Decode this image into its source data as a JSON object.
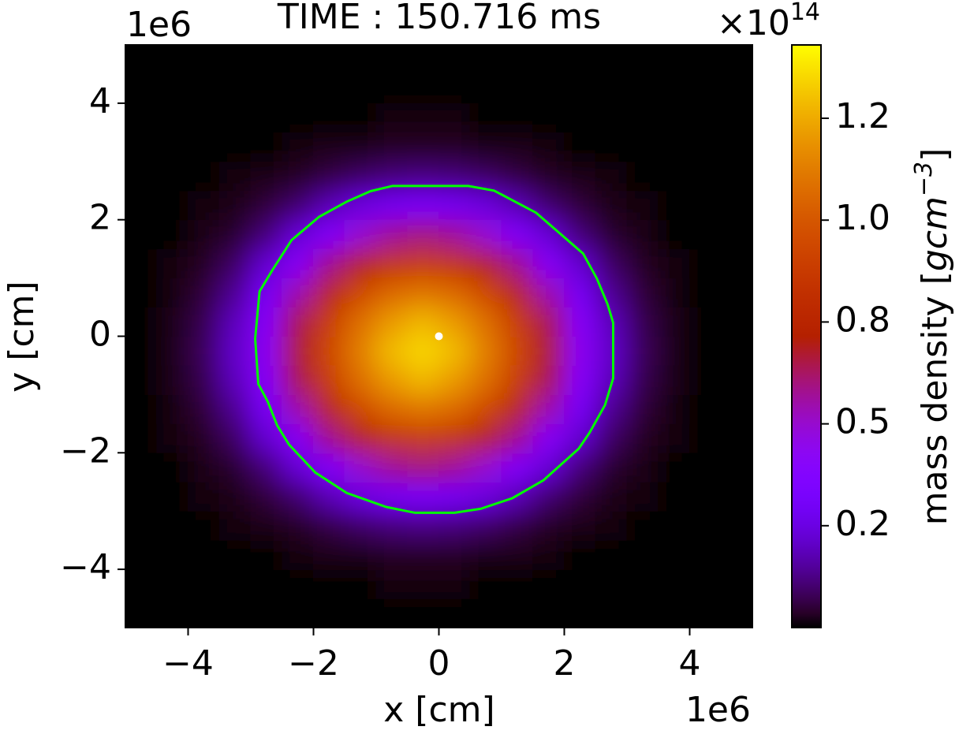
{
  "chart_data": {
    "type": "heatmap",
    "title": "TIME : 150.716 ms",
    "x_label": "x [cm]",
    "y_label": "y [cm]",
    "x_offset": "1e6",
    "y_offset": "1e6",
    "xlim": [
      -5,
      5
    ],
    "ylim": [
      -5,
      5
    ],
    "xticks": [
      {
        "value": -4,
        "label": "−4"
      },
      {
        "value": -2,
        "label": "−2"
      },
      0,
      2,
      4
    ],
    "yticks": [
      {
        "value": -4,
        "label": "−4"
      },
      {
        "value": -2,
        "label": "−2"
      },
      0,
      2,
      4
    ],
    "colormap": "gnuplot",
    "x": [
      -4.75,
      -4.25,
      -3.75,
      -3.25,
      -2.75,
      -2.25,
      -1.75,
      -1.25,
      -0.75,
      -0.25,
      0.25,
      0.75,
      1.25,
      1.75,
      2.25,
      2.75,
      3.25,
      3.75,
      4.25,
      4.75
    ],
    "y": [
      -4.75,
      -4.25,
      -3.75,
      -3.25,
      -2.75,
      -2.25,
      -1.75,
      -1.25,
      -0.75,
      -0.25,
      0.25,
      0.75,
      1.25,
      1.75,
      2.25,
      2.75,
      3.25,
      3.75,
      4.25,
      4.75
    ],
    "z": [
      [
        0,
        0,
        0,
        0,
        0,
        0,
        0,
        0,
        0,
        0,
        0,
        0,
        0,
        0,
        0,
        0,
        0,
        0,
        0,
        0
      ],
      [
        0,
        0,
        0,
        0,
        0,
        0,
        0,
        0,
        0.01,
        0.01,
        0.01,
        0,
        0,
        0,
        0,
        0,
        0,
        0,
        0,
        0
      ],
      [
        0,
        0,
        0,
        0,
        0,
        0.01,
        0.02,
        0.02,
        0.03,
        0.03,
        0.03,
        0.02,
        0.02,
        0.01,
        0,
        0,
        0,
        0,
        0,
        0
      ],
      [
        0,
        0,
        0,
        0.01,
        0.02,
        0.03,
        0.06,
        0.09,
        0.11,
        0.12,
        0.11,
        0.09,
        0.06,
        0.03,
        0.02,
        0.01,
        0,
        0,
        0,
        0
      ],
      [
        0,
        0,
        0.01,
        0.02,
        0.05,
        0.1,
        0.18,
        0.25,
        0.3,
        0.32,
        0.3,
        0.25,
        0.18,
        0.1,
        0.05,
        0.02,
        0.01,
        0,
        0,
        0
      ],
      [
        0,
        0,
        0.02,
        0.04,
        0.11,
        0.23,
        0.36,
        0.49,
        0.57,
        0.6,
        0.57,
        0.49,
        0.36,
        0.23,
        0.11,
        0.04,
        0.02,
        0,
        0,
        0
      ],
      [
        0,
        0.01,
        0.03,
        0.09,
        0.22,
        0.39,
        0.58,
        0.73,
        0.84,
        0.88,
        0.84,
        0.73,
        0.58,
        0.39,
        0.22,
        0.09,
        0.03,
        0.01,
        0,
        0
      ],
      [
        0,
        0.01,
        0.05,
        0.14,
        0.31,
        0.54,
        0.76,
        0.94,
        1.06,
        1.1,
        1.06,
        0.94,
        0.76,
        0.54,
        0.31,
        0.14,
        0.05,
        0.01,
        0,
        0
      ],
      [
        0,
        0.02,
        0.07,
        0.19,
        0.39,
        0.65,
        0.89,
        1.08,
        1.21,
        1.28,
        1.21,
        1.08,
        0.89,
        0.65,
        0.39,
        0.19,
        0.07,
        0.02,
        0,
        0
      ],
      [
        0,
        0.02,
        0.08,
        0.21,
        0.42,
        0.68,
        0.93,
        1.13,
        1.29,
        1.35,
        1.29,
        1.13,
        0.93,
        0.68,
        0.42,
        0.21,
        0.08,
        0.02,
        0,
        0
      ],
      [
        0,
        0.02,
        0.07,
        0.19,
        0.39,
        0.65,
        0.89,
        1.08,
        1.21,
        1.28,
        1.21,
        1.08,
        0.89,
        0.65,
        0.39,
        0.19,
        0.07,
        0.02,
        0,
        0
      ],
      [
        0,
        0.01,
        0.05,
        0.14,
        0.31,
        0.54,
        0.76,
        0.94,
        1.06,
        1.1,
        1.06,
        0.94,
        0.76,
        0.54,
        0.31,
        0.14,
        0.05,
        0.01,
        0,
        0
      ],
      [
        0,
        0.01,
        0.03,
        0.09,
        0.22,
        0.39,
        0.58,
        0.73,
        0.84,
        0.88,
        0.84,
        0.73,
        0.58,
        0.39,
        0.22,
        0.09,
        0.03,
        0.01,
        0,
        0
      ],
      [
        0,
        0,
        0.02,
        0.04,
        0.11,
        0.23,
        0.36,
        0.49,
        0.57,
        0.6,
        0.57,
        0.49,
        0.36,
        0.23,
        0.11,
        0.04,
        0.02,
        0,
        0,
        0
      ],
      [
        0,
        0,
        0.01,
        0.02,
        0.05,
        0.1,
        0.18,
        0.25,
        0.3,
        0.32,
        0.3,
        0.25,
        0.18,
        0.1,
        0.05,
        0.02,
        0.01,
        0,
        0,
        0
      ],
      [
        0,
        0,
        0,
        0.01,
        0.02,
        0.03,
        0.06,
        0.09,
        0.11,
        0.12,
        0.11,
        0.09,
        0.06,
        0.03,
        0.02,
        0.01,
        0,
        0,
        0,
        0
      ],
      [
        0,
        0,
        0,
        0,
        0,
        0.01,
        0.02,
        0.02,
        0.03,
        0.03,
        0.03,
        0.02,
        0.02,
        0.01,
        0,
        0,
        0,
        0,
        0,
        0
      ],
      [
        0,
        0,
        0,
        0,
        0,
        0,
        0,
        0,
        0.01,
        0.01,
        0.01,
        0,
        0,
        0,
        0,
        0,
        0,
        0,
        0,
        0
      ],
      [
        0,
        0,
        0,
        0,
        0,
        0,
        0,
        0,
        0,
        0,
        0,
        0,
        0,
        0,
        0,
        0,
        0,
        0,
        0,
        0
      ],
      [
        0,
        0,
        0,
        0,
        0,
        0,
        0,
        0,
        0,
        0,
        0,
        0,
        0,
        0,
        0,
        0,
        0,
        0,
        0,
        0
      ]
    ],
    "contour": {
      "color": "#00ff00",
      "x": [
        -0.74,
        0.47,
        0.88,
        1.55,
        2.3,
        2.52,
        2.69,
        2.78,
        2.78,
        2.65,
        2.4,
        2.23,
        1.67,
        1.17,
        0.67,
        0.25,
        -0.38,
        -0.84,
        -1.47,
        -1.97,
        -2.39,
        -2.58,
        -2.73,
        -2.88,
        -2.93,
        -2.86,
        -2.67,
        -2.35,
        -1.91,
        -1.47,
        -1.09
      ],
      "y": [
        2.58,
        2.58,
        2.5,
        2.12,
        1.42,
        0.99,
        0.55,
        0.23,
        -0.72,
        -1.18,
        -1.66,
        -1.93,
        -2.47,
        -2.78,
        -2.96,
        -3.03,
        -3.03,
        -2.93,
        -2.69,
        -2.34,
        -1.86,
        -1.53,
        -1.12,
        -0.82,
        -0.04,
        0.77,
        1.11,
        1.65,
        2.05,
        2.31,
        2.49
      ]
    },
    "marker": {
      "x": 0,
      "y": 0,
      "color": "#ffffff"
    },
    "colorbar": {
      "label": {
        "text": "mass density [",
        "units": "gcm",
        "exponent": "−3",
        "close": "]"
      },
      "offset": {
        "base": "×10",
        "exponent": "14"
      },
      "clim": [
        0,
        1.43
      ],
      "ticks": [
        {
          "value": 0.25,
          "label": "0.2"
        },
        {
          "value": 0.5,
          "label": "0.5"
        },
        {
          "value": 0.75,
          "label": "0.8"
        },
        {
          "value": 1.0,
          "label": "1.0"
        },
        {
          "value": 1.25,
          "label": "1.2"
        }
      ]
    }
  }
}
